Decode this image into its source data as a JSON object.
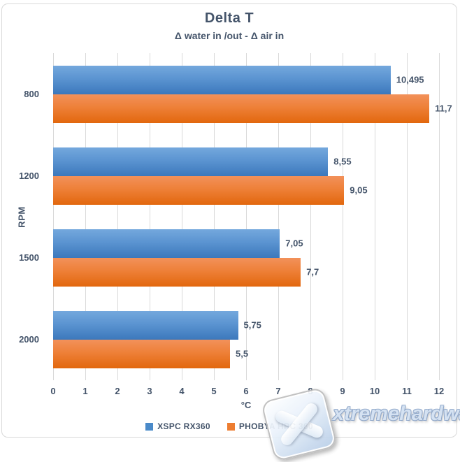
{
  "chart": {
    "title": "Delta T",
    "subtitle": "Δ water in /out - Δ air in",
    "x_axis_title": "°C",
    "y_axis_title": "RPM"
  },
  "chart_data": {
    "type": "bar",
    "orientation": "horizontal",
    "title": "Delta T",
    "subtitle": "Δ water in /out - Δ air in",
    "xlabel": "°C",
    "ylabel": "RPM",
    "categories": [
      "800",
      "1200",
      "1500",
      "2000"
    ],
    "series": [
      {
        "name": "XSPC RX360",
        "color": "#4A8AC9",
        "values": [
          10.495,
          8.55,
          7.05,
          5.75
        ],
        "value_labels": [
          "10,495",
          "8,55",
          "7,05",
          "5,75"
        ]
      },
      {
        "name": "PHOBYA HPC 360",
        "color": "#ED7D31",
        "values": [
          11.7,
          9.05,
          7.7,
          5.5
        ],
        "value_labels": [
          "11,7",
          "9,05",
          "7,7",
          "5,5"
        ]
      }
    ],
    "xlim": [
      0,
      12
    ],
    "x_ticks": [
      "0",
      "1",
      "2",
      "3",
      "4",
      "5",
      "6",
      "7",
      "8",
      "9",
      "10",
      "11",
      "12"
    ],
    "grid": true,
    "legend_position": "bottom"
  },
  "colors": {
    "text": "#44546A",
    "gridline": "#D9D9D9",
    "blue_bar_top": "#74A8DD",
    "blue_bar_bottom": "#3C78BC",
    "orange_bar_top": "#F2915A",
    "orange_bar_bottom": "#E2670D"
  },
  "watermark": {
    "text": "xtremehardware.com"
  }
}
